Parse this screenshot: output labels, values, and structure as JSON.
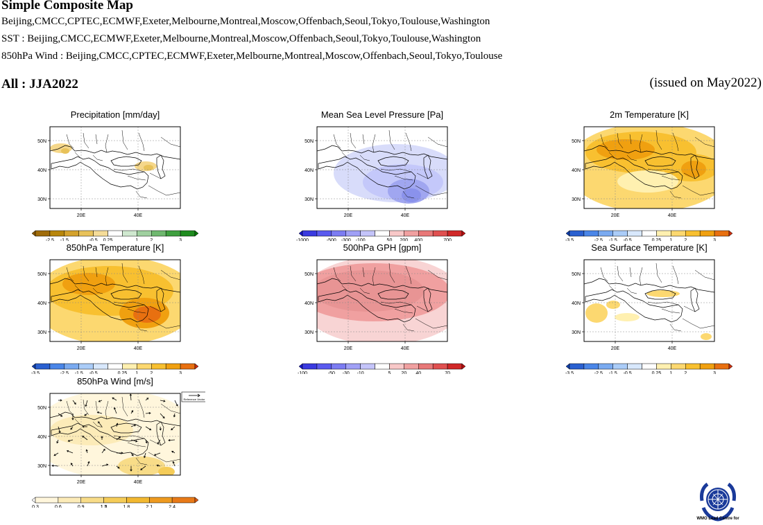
{
  "header": {
    "title": "Simple Composite Map",
    "line1": "Beijing,CMCC,CPTEC,ECMWF,Exeter,Melbourne,Montreal,Moscow,Offenbach,Seoul,Tokyo,Toulouse,Washington",
    "line2": "SST : Beijing,CMCC,ECMWF,Exeter,Melbourne,Montreal,Moscow,Offenbach,Seoul,Tokyo,Toulouse,Washington",
    "line3": "850hPa Wind : Beijing,CMCC,CPTEC,ECMWF,Exeter,Melbourne,Montreal,Moscow,Offenbach,Seoul,Tokyo,Toulouse",
    "season": "All : JJA2022",
    "issued": "(issued on May2022)"
  },
  "map_axes": {
    "lat_labels": [
      "50N",
      "40N",
      "30N"
    ],
    "lon_labels": [
      "20E",
      "40E"
    ]
  },
  "panels": [
    {
      "id": "precip",
      "title": "Precipitation [mm/day]",
      "labels": [
        "-2.5",
        "-1.5",
        "-0.5",
        "0.25",
        "1",
        "2",
        "3"
      ],
      "colors": [
        "#8c5a00",
        "#a06c0a",
        "#b8860b",
        "#d4a22c",
        "#e8c25a",
        "#f5dc98",
        "#ffffff",
        "#cfe8cf",
        "#9fd09f",
        "#6fb86f",
        "#3fa03f",
        "#1f8c1f",
        "#0a7a0a"
      ]
    },
    {
      "id": "mslp",
      "title": "Mean Sea Level Pressure [Pa]",
      "labels": [
        "-1000",
        "-500",
        "-300",
        "-100",
        "50",
        "200",
        "400",
        "700"
      ],
      "colors": [
        "#1a1acc",
        "#3a3ae0",
        "#5a5aef",
        "#7c7cf2",
        "#a0a0f6",
        "#c4c4fa",
        "#ffffff",
        "#f8c8c8",
        "#f0a0a0",
        "#e87878",
        "#e05050",
        "#d02828",
        "#bb1010"
      ]
    },
    {
      "id": "t2m",
      "title": "2m Temperature [K]",
      "labels": [
        "-3.5",
        "-2.5",
        "-1.5",
        "-0.5",
        "0.25",
        "1",
        "2",
        "3"
      ],
      "colors": [
        "#1040b0",
        "#2a60d0",
        "#4a86e8",
        "#7aaaf0",
        "#aaccf8",
        "#d8e8fc",
        "#ffffff",
        "#fff0b0",
        "#fcd870",
        "#f8c030",
        "#f0a010",
        "#e87010",
        "#cc3010"
      ]
    },
    {
      "id": "t850",
      "title": "850hPa Temperature [K]",
      "labels": [
        "-3.5",
        "-2.5",
        "-1.5",
        "-0.5",
        "0.25",
        "1",
        "2",
        "3"
      ],
      "colors": [
        "#1040b0",
        "#2a60d0",
        "#4a86e8",
        "#7aaaf0",
        "#aaccf8",
        "#d8e8fc",
        "#ffffff",
        "#fff0b0",
        "#fcd870",
        "#f8c030",
        "#f0a010",
        "#e87010",
        "#cc3010"
      ]
    },
    {
      "id": "gph500",
      "title": "500hPa GPH [gpm]",
      "labels": [
        "-100",
        "-50",
        "-30",
        "-10",
        "5",
        "20",
        "40",
        "70"
      ],
      "colors": [
        "#1a1acc",
        "#3a3ae0",
        "#5a5aef",
        "#7c7cf2",
        "#a0a0f6",
        "#c4c4fa",
        "#ffffff",
        "#f8c8c8",
        "#f0a0a0",
        "#e87878",
        "#e05050",
        "#d02828",
        "#bb1010"
      ]
    },
    {
      "id": "sst",
      "title": "Sea Surface Temperature [K]",
      "labels": [
        "-3.5",
        "-2.5",
        "-1.5",
        "-0.5",
        "0.25",
        "1",
        "2",
        "3"
      ],
      "colors": [
        "#1040b0",
        "#2a60d0",
        "#4a86e8",
        "#7aaaf0",
        "#aaccf8",
        "#d8e8fc",
        "#ffffff",
        "#fff0b0",
        "#fcd870",
        "#f8c030",
        "#f0a010",
        "#e87010",
        "#cc3010"
      ]
    },
    {
      "id": "wind850",
      "title": "850hPa Wind [m/s]",
      "labels": [
        "0.3",
        "0.6",
        "0.9",
        "1.2",
        "1.5",
        "1.8",
        "2.1",
        "2.4"
      ],
      "colors": [
        "#ffffff",
        "#fff6dc",
        "#fcebb8",
        "#f8dc88",
        "#f5cc58",
        "#f2b830",
        "#ee9a20",
        "#e87a18",
        "#e05a10"
      ]
    }
  ],
  "reference_vector_label": "Reference Vector",
  "logo_caption": "WMO Lead Centre for"
}
